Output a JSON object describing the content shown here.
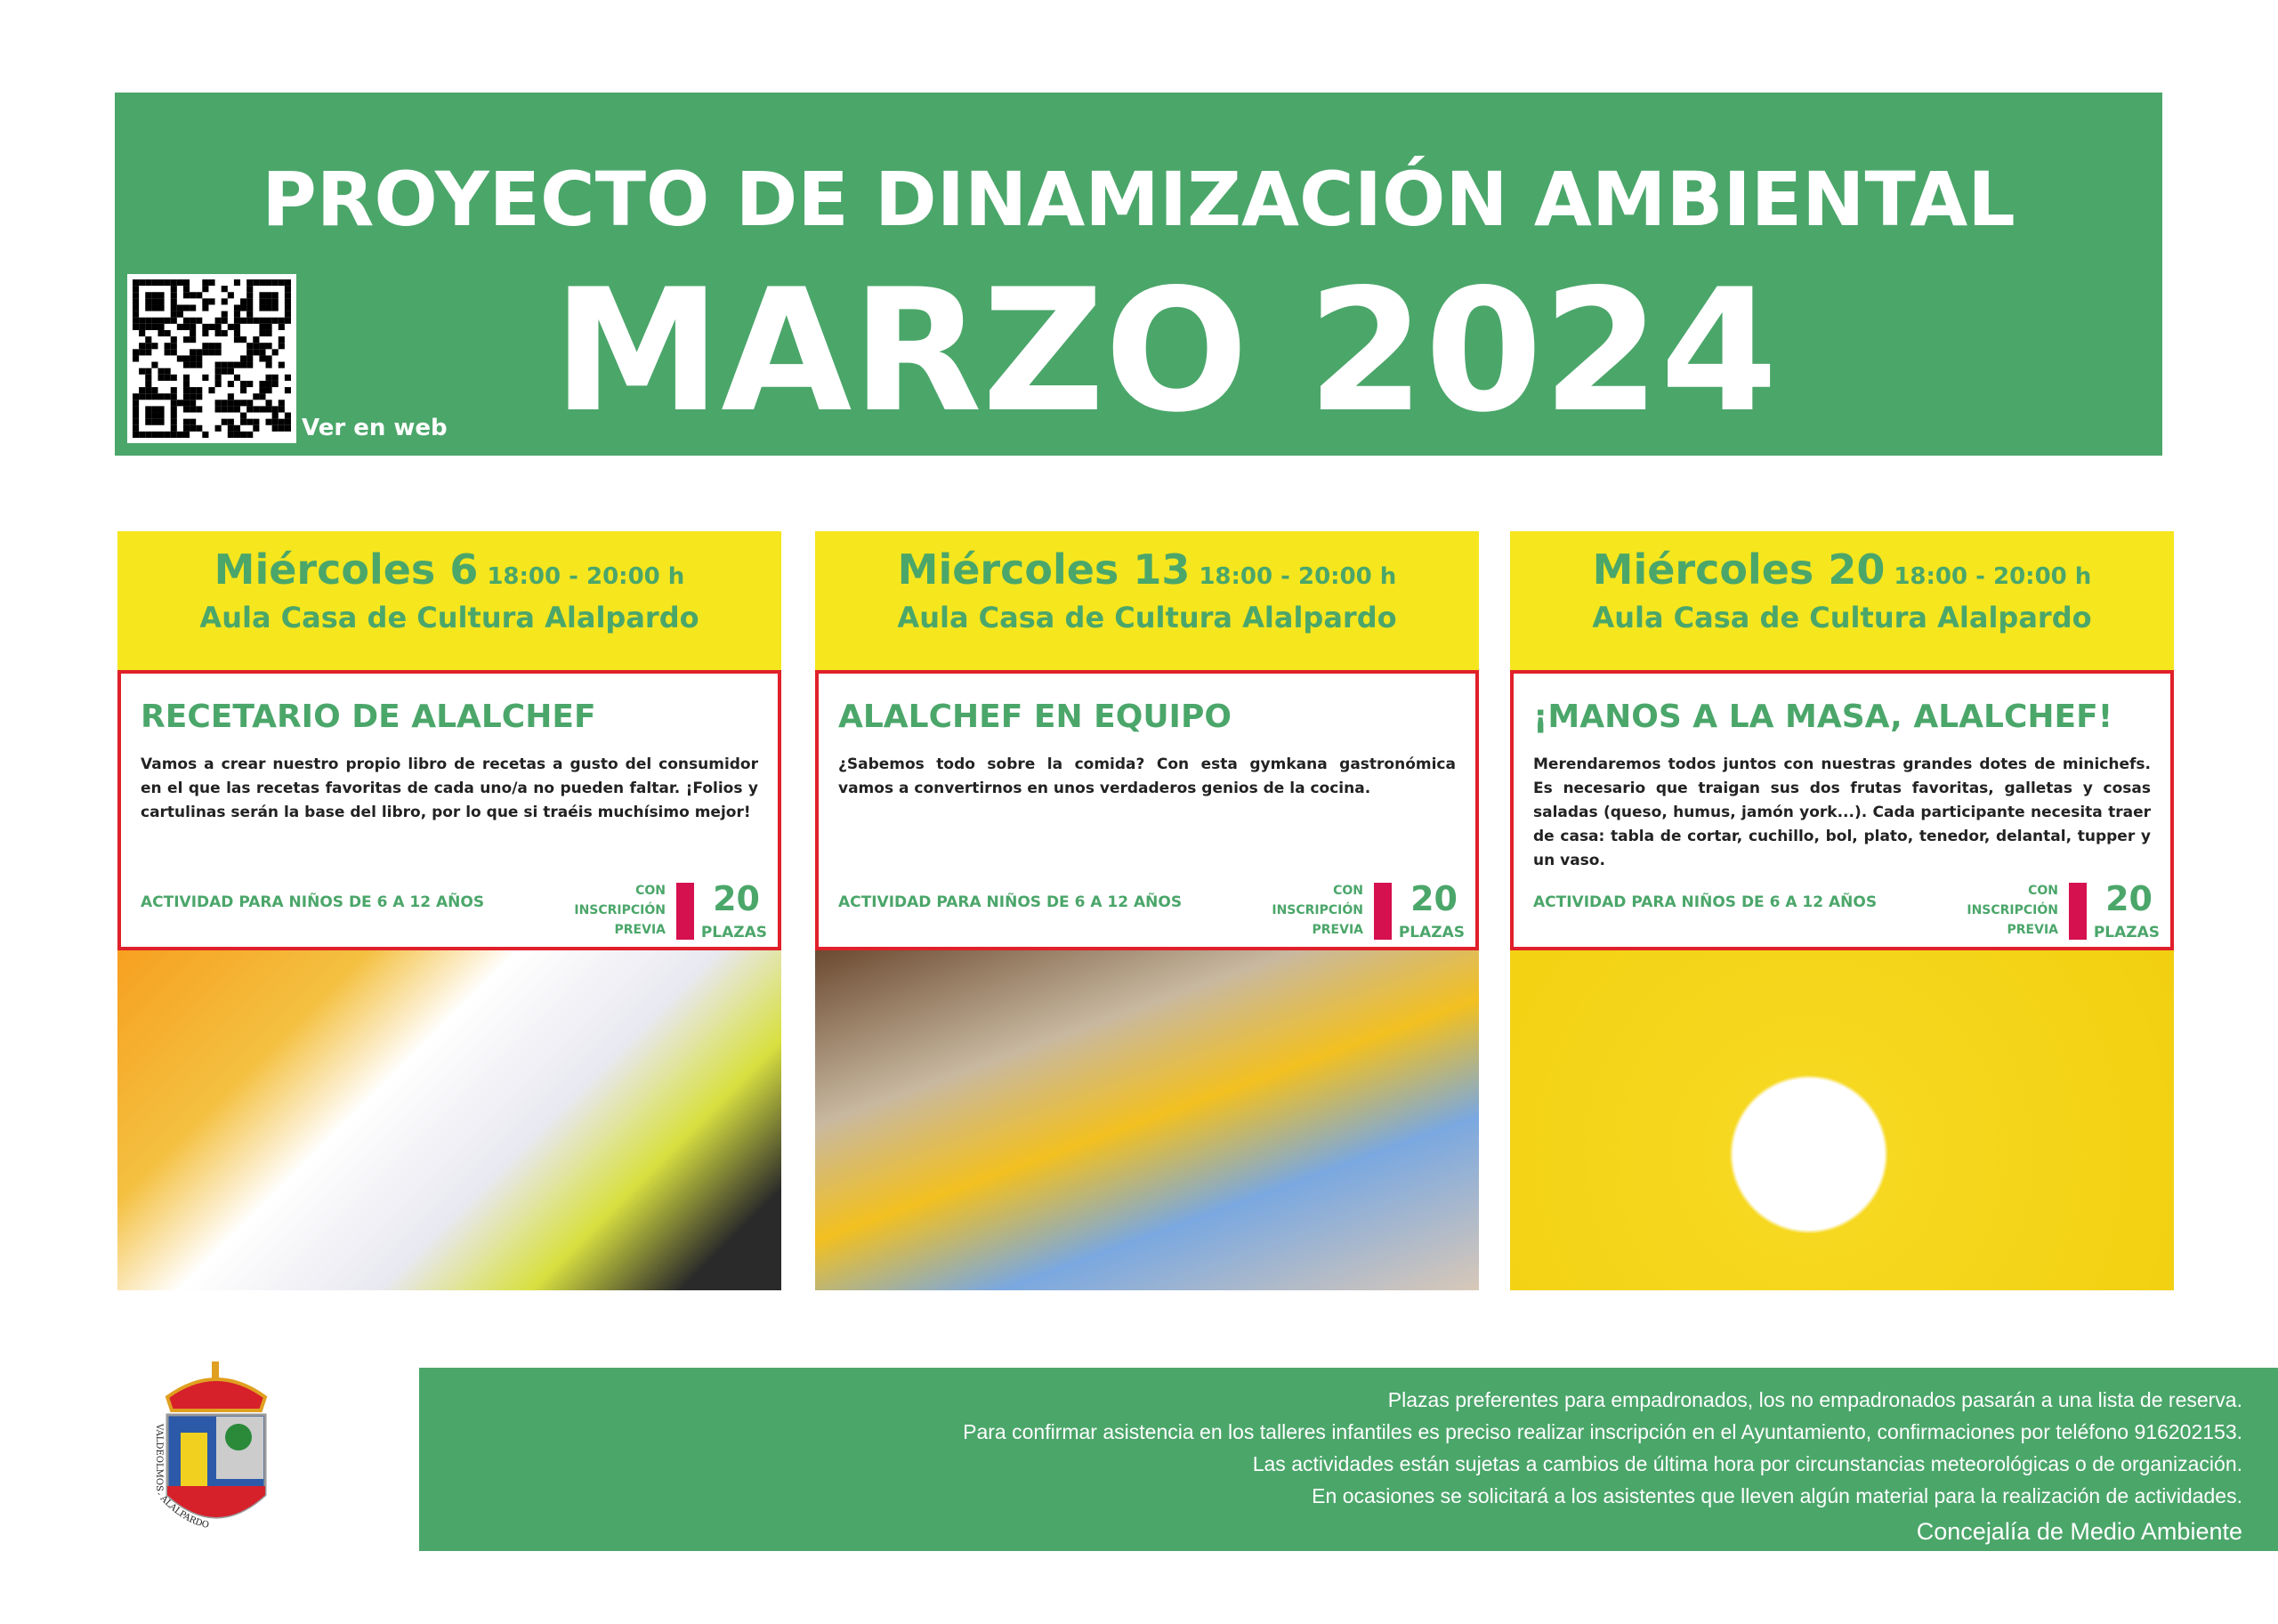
{
  "header": {
    "title": "PROYECTO DE DINAMIZACIÓN AMBIENTAL",
    "subtitle": "MARZO 2024",
    "qr_label": "Ver en web"
  },
  "events": [
    {
      "day": "Miércoles 6",
      "time": "18:00 - 20:00 h",
      "place": "Aula Casa de Cultura Alalpardo",
      "title": "RECETARIO DE ALALCHEF",
      "description": "Vamos a crear nuestro propio libro de recetas a gusto del consumidor en el que las recetas favoritas de cada uno/a no pueden faltar. ¡Folios y cartulinas serán la base del libro, por lo que si traéis muchísimo mejor!",
      "age": "ACTIVIDAD PARA NIÑOS DE 6 A 12 AÑOS",
      "inscription": [
        "CON",
        "INSCRIPCIÓN",
        "PREVIA"
      ],
      "places": "20",
      "places_label": "PLAZAS",
      "image": "hands-writing-recipe-with-fruits"
    },
    {
      "day": "Miércoles 13",
      "time": "18:00 - 20:00 h",
      "place": "Aula Casa de Cultura Alalpardo",
      "title": "ALALCHEF EN EQUIPO",
      "description": "¿Sabemos todo sobre la comida? Con esta gymkana gastronómica vamos a convertirnos en unos verdaderos genios de la cocina.",
      "age": "ACTIVIDAD PARA NIÑOS DE 6 A 12 AÑOS",
      "inscription": [
        "CON",
        "INSCRIPCIÓN",
        "PREVIA"
      ],
      "places": "20",
      "places_label": "PLAZAS",
      "image": "children-cooking-together"
    },
    {
      "day": "Miércoles 20",
      "time": "18:00 - 20:00 h",
      "place": "Aula Casa de Cultura Alalpardo",
      "title": "¡MANOS A LA MASA, ALALCHEF!",
      "description": "Merendaremos todos juntos con nuestras grandes dotes de minichefs. Es necesario que traigan sus dos frutas favoritas, galletas y cosas saladas (queso, humus, jamón york...). Cada participante necesita traer de casa: tabla de cortar, cuchillo, bol, plato, tenedor, delantal, tupper y un vaso.",
      "age": "ACTIVIDAD PARA NIÑOS DE 6 A 12 AÑOS",
      "inscription": [
        "CON",
        "INSCRIPCIÓN",
        "PREVIA"
      ],
      "places": "20",
      "places_label": "PLAZAS",
      "image": "child-chef-yellow-background"
    }
  ],
  "footer": {
    "lines": [
      "Plazas preferentes para empadronados, los no empadronados pasarán a una lista de reserva.",
      "Para confirmar asistencia en los talleres infantiles es preciso realizar inscripción en el Ayuntamiento, confirmaciones por teléfono 916202153.",
      "Las actividades están sujetas a cambios de última hora por circunstancias meteorológicas o de organización.",
      "En ocasiones se solicitará a los asistentes que lleven algún material para la realización de actividades."
    ],
    "signature": "Concejalía de Medio Ambiente"
  },
  "crest_text": "VALDEOLMOS - ALALPARDO",
  "colors": {
    "green": "#4ba66a",
    "yellow": "#f6e61e",
    "red": "#e0202a",
    "magenta": "#d6114f"
  }
}
